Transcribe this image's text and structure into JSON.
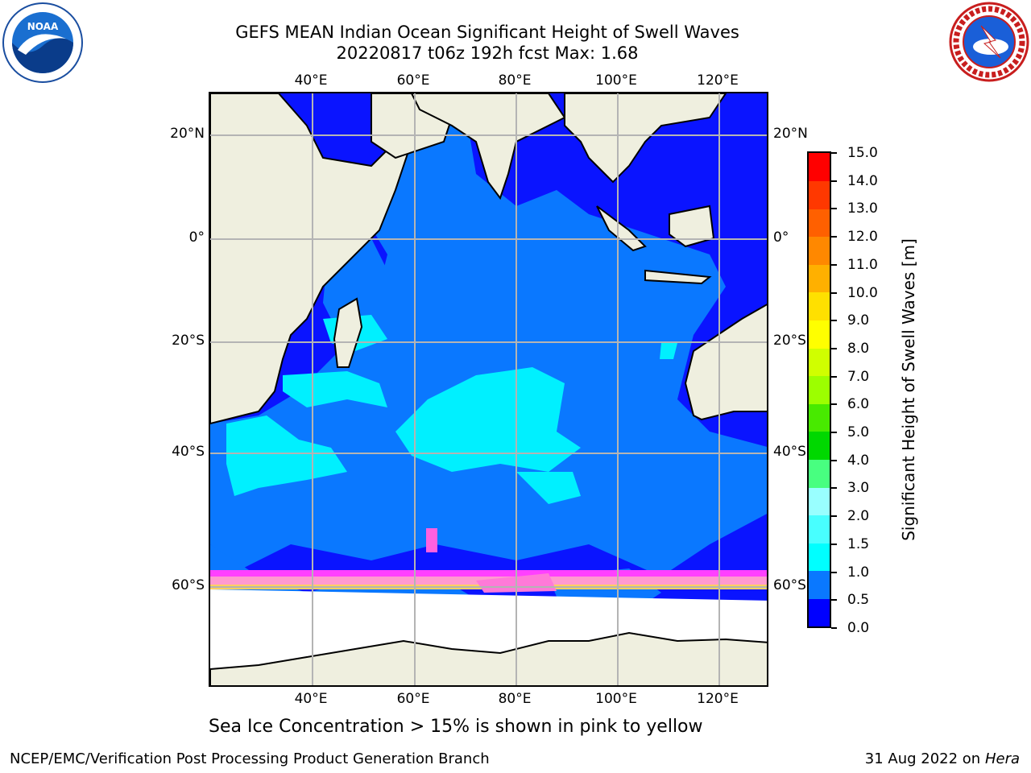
{
  "title": {
    "line1": "GEFS MEAN Indian Ocean Significant Height of Swell Waves",
    "line2": "20220817 t06z 192h fcst   Max: 1.68"
  },
  "map": {
    "lon_labels": [
      "40°E",
      "60°E",
      "80°E",
      "100°E",
      "120°E"
    ],
    "lat_labels": [
      "20°N",
      "0°",
      "20°S",
      "40°S",
      "60°S"
    ],
    "land_color": "#efefdf",
    "ice_color": "#ffffff"
  },
  "colorbar": {
    "label": "Significant Height of Swell Waves [m]",
    "ticks": [
      "0.0",
      "0.5",
      "1.0",
      "1.5",
      "2.0",
      "3.0",
      "4.0",
      "5.0",
      "6.0",
      "7.0",
      "8.0",
      "9.0",
      "10.0",
      "11.0",
      "12.0",
      "13.0",
      "14.0",
      "15.0"
    ],
    "colors": [
      "#0000ff",
      "#0a78ff",
      "#00ffff",
      "#48ffff",
      "#99ffff",
      "#48ff80",
      "#00d800",
      "#48ea00",
      "#9cff00",
      "#d0ff00",
      "#ffff00",
      "#ffe000",
      "#ffb000",
      "#ff8800",
      "#ff6000",
      "#ff3800",
      "#ff0000"
    ]
  },
  "subcaption": "Sea Ice Concentration > 15% is shown in pink to yellow",
  "footer": {
    "left": "NCEP/EMC/Verification Post Processing Product Generation Branch",
    "right_date": "31 Aug 2022 on",
    "right_host": "Hera"
  },
  "logos": {
    "noaa_text": "NOAA",
    "nws_text": "NATIONAL WEATHER SERVICE"
  }
}
